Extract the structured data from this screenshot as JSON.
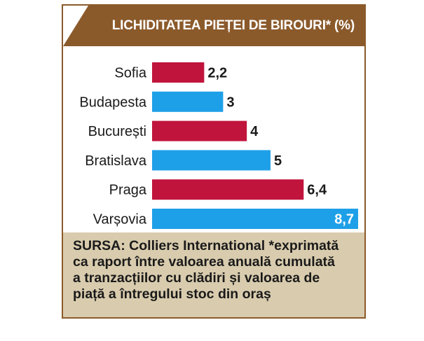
{
  "title": "LICHIDITATEA PIEȚEI DE BIROURI* (%)",
  "source_lines": [
    "SURSA: Colliers International  *exprimată",
    "ca raport între valoarea anuală cumulată",
    "a tranzacțiilor cu clădiri și valoarea de",
    "piață a întregului stoc din oraș"
  ],
  "colors": {
    "frame": "#8b5a2b",
    "crimson": "#c0143c",
    "blue": "#1ea0e8",
    "source_bg": "#d9ccae"
  },
  "chart_data": {
    "type": "bar",
    "orientation": "horizontal",
    "title": "LICHIDITATEA PIEȚEI DE BIROURI* (%)",
    "xlabel": "",
    "ylabel": "",
    "grid": false,
    "categories": [
      "Sofia",
      "Budapesta",
      "București",
      "Bratislava",
      "Praga",
      "Varșovia"
    ],
    "values": [
      2.2,
      3,
      4,
      5,
      6.4,
      8.7
    ],
    "value_labels": [
      "2,2",
      "3",
      "4",
      "5",
      "6,4",
      "8,7"
    ],
    "bar_colors": [
      "#c0143c",
      "#1ea0e8",
      "#c0143c",
      "#1ea0e8",
      "#c0143c",
      "#1ea0e8"
    ],
    "xlim": [
      0,
      8.7
    ]
  }
}
